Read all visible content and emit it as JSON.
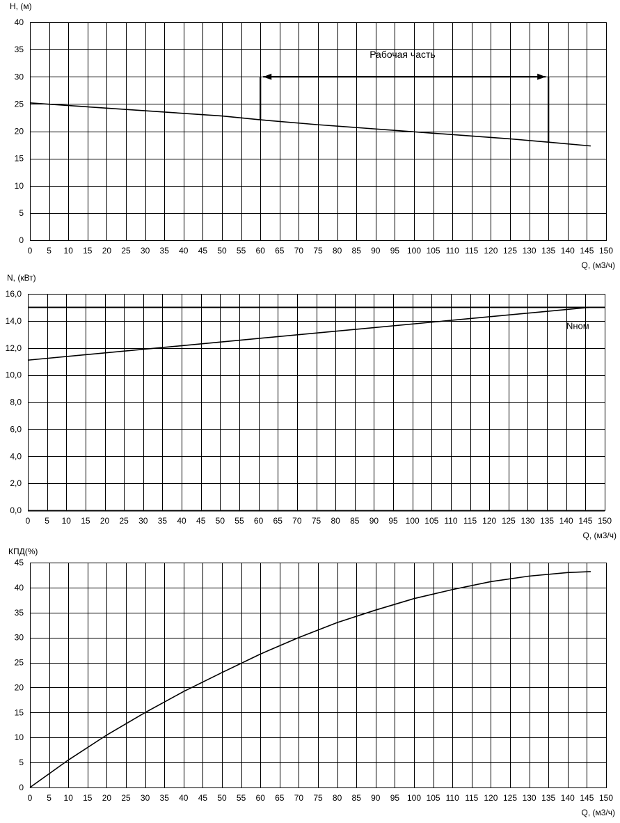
{
  "chart_data": [
    {
      "type": "line",
      "ylabel": "H, (м)",
      "xlabel": "Q, (м3/ч)",
      "xlim": [
        0,
        150
      ],
      "ylim": [
        0,
        40
      ],
      "grid": true,
      "x_ticks": [
        "0",
        "5",
        "10",
        "15",
        "20",
        "25",
        "30",
        "35",
        "40",
        "45",
        "50",
        "55",
        "60",
        "65",
        "70",
        "75",
        "80",
        "85",
        "90",
        "95",
        "100",
        "105",
        "110",
        "115",
        "120",
        "125",
        "130",
        "135",
        "140",
        "145",
        "150"
      ],
      "y_ticks": [
        "0",
        "5",
        "10",
        "15",
        "20",
        "25",
        "30",
        "35",
        "40"
      ],
      "series": [
        {
          "x": [
            0,
            25,
            50,
            60,
            75,
            100,
            125,
            135,
            146
          ],
          "y": [
            25.2,
            24.0,
            22.8,
            22.1,
            21.2,
            19.9,
            18.6,
            18.0,
            17.3
          ]
        }
      ],
      "annotations": [
        {
          "text": "Рабочая часть",
          "x": 97,
          "y": 33.5
        }
      ],
      "working_range": {
        "x_start": 60,
        "x_end": 135,
        "y_level": 30,
        "y_start": 22.1,
        "y_end": 18.0
      }
    },
    {
      "type": "line",
      "ylabel": "N, (кВт)",
      "xlabel": "Q, (м3/ч)",
      "xlim": [
        0,
        150
      ],
      "ylim": [
        0,
        16
      ],
      "grid": true,
      "x_ticks": [
        "0",
        "5",
        "10",
        "15",
        "20",
        "25",
        "30",
        "35",
        "40",
        "45",
        "50",
        "55",
        "60",
        "65",
        "70",
        "75",
        "80",
        "85",
        "90",
        "95",
        "100",
        "105",
        "110",
        "115",
        "120",
        "125",
        "130",
        "135",
        "140",
        "145",
        "150"
      ],
      "y_ticks": [
        "0,0",
        "2,0",
        "4,0",
        "6,0",
        "8,0",
        "10,0",
        "12,0",
        "14,0",
        "16,0"
      ],
      "series": [
        {
          "x": [
            0,
            146
          ],
          "y": [
            11.1,
            15.0
          ]
        }
      ],
      "reference_line": {
        "y": 15.0
      },
      "annotations": [
        {
          "text": "Nном",
          "x": 143,
          "y": 13.4
        }
      ]
    },
    {
      "type": "line",
      "ylabel": "КПД(%)",
      "xlabel": "Q, (м3/ч)",
      "xlim": [
        0,
        150
      ],
      "ylim": [
        0,
        45
      ],
      "grid": true,
      "x_ticks": [
        "0",
        "5",
        "10",
        "15",
        "20",
        "25",
        "30",
        "35",
        "40",
        "45",
        "50",
        "55",
        "60",
        "65",
        "70",
        "75",
        "80",
        "85",
        "90",
        "95",
        "100",
        "105",
        "110",
        "115",
        "120",
        "125",
        "130",
        "135",
        "140",
        "145",
        "150"
      ],
      "y_ticks": [
        "0",
        "5",
        "10",
        "15",
        "20",
        "25",
        "30",
        "35",
        "40",
        "45"
      ],
      "series": [
        {
          "x": [
            0,
            10,
            20,
            30,
            40,
            50,
            60,
            70,
            80,
            90,
            100,
            110,
            120,
            130,
            140,
            146
          ],
          "y": [
            0,
            5.5,
            10.5,
            15.0,
            19.2,
            23.0,
            26.7,
            30.0,
            33.0,
            35.5,
            37.8,
            39.6,
            41.2,
            42.3,
            43.0,
            43.2
          ]
        }
      ]
    }
  ]
}
